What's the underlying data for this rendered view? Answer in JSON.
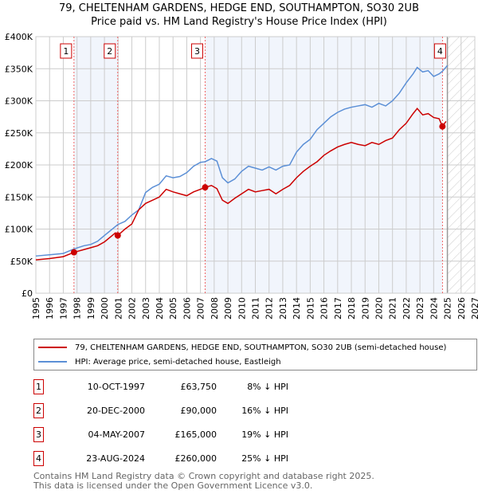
{
  "chart_data": {
    "type": "line",
    "title": "79, CHELTENHAM GARDENS, HEDGE END, SOUTHAMPTON, SO30 2UB",
    "subtitle": "Price paid vs. HM Land Registry's House Price Index (HPI)",
    "xlim": [
      1995,
      2027
    ],
    "ylim": [
      0,
      400000
    ],
    "x_ticks": [
      "1995",
      "1996",
      "1997",
      "1998",
      "1999",
      "2000",
      "2001",
      "2002",
      "2003",
      "2004",
      "2005",
      "2006",
      "2007",
      "2008",
      "2009",
      "2010",
      "2011",
      "2012",
      "2013",
      "2014",
      "2015",
      "2016",
      "2017",
      "2018",
      "2019",
      "2020",
      "2021",
      "2022",
      "2023",
      "2024",
      "2025",
      "2026",
      "2027"
    ],
    "y_ticks": [
      {
        "v": 0,
        "l": "£0"
      },
      {
        "v": 50000,
        "l": "£50K"
      },
      {
        "v": 100000,
        "l": "£100K"
      },
      {
        "v": 150000,
        "l": "£150K"
      },
      {
        "v": 200000,
        "l": "£200K"
      },
      {
        "v": 250000,
        "l": "£250K"
      },
      {
        "v": 300000,
        "l": "£300K"
      },
      {
        "v": 350000,
        "l": "£350K"
      },
      {
        "v": 400000,
        "l": "£400K"
      }
    ],
    "grid": true,
    "series": [
      {
        "name": "79, CHELTENHAM GARDENS, HEDGE END, SOUTHAMPTON, SO30 2UB (semi-detached house)",
        "color": "#cc0000",
        "x": [
          1995,
          1996,
          1997,
          1997.78,
          1998.5,
          1999,
          1999.5,
          2000,
          2000.8,
          2000.97,
          2001.5,
          2002,
          2002.5,
          2003,
          2003.5,
          2004,
          2004.5,
          2005,
          2005.5,
          2006,
          2006.5,
          2007,
          2007.34,
          2007.8,
          2008.2,
          2008.6,
          2009,
          2009.5,
          2010,
          2010.5,
          2011,
          2011.5,
          2012,
          2012.5,
          2013,
          2013.5,
          2014,
          2014.5,
          2015,
          2015.5,
          2016,
          2016.5,
          2017,
          2017.5,
          2018,
          2018.5,
          2019,
          2019.5,
          2020,
          2020.5,
          2021,
          2021.5,
          2022,
          2022.5,
          2022.8,
          2023.2,
          2023.6,
          2024,
          2024.4,
          2024.64,
          2024.9
        ],
        "y": [
          52000,
          54000,
          57000,
          63750,
          68000,
          71000,
          74000,
          80000,
          94000,
          90000,
          100000,
          108000,
          130000,
          140000,
          145000,
          150000,
          162000,
          158000,
          155000,
          152000,
          158000,
          162000,
          165000,
          168000,
          163000,
          145000,
          140000,
          148000,
          155000,
          162000,
          158000,
          160000,
          162000,
          155000,
          162000,
          168000,
          180000,
          190000,
          198000,
          205000,
          215000,
          222000,
          228000,
          232000,
          235000,
          232000,
          230000,
          235000,
          232000,
          238000,
          242000,
          255000,
          265000,
          280000,
          288000,
          278000,
          280000,
          274000,
          272000,
          260000,
          268000
        ]
      },
      {
        "name": "HPI: Average price, semi-detached house, Eastleigh",
        "color": "#5b8fd6",
        "x": [
          1995,
          1996,
          1997,
          1997.78,
          1998.5,
          1999,
          1999.5,
          2000,
          2000.97,
          2001.5,
          2002,
          2002.5,
          2003,
          2003.5,
          2004,
          2004.5,
          2005,
          2005.5,
          2006,
          2006.5,
          2007,
          2007.34,
          2007.8,
          2008.2,
          2008.6,
          2009,
          2009.5,
          2010,
          2010.5,
          2011,
          2011.5,
          2012,
          2012.5,
          2013,
          2013.5,
          2014,
          2014.5,
          2015,
          2015.5,
          2016,
          2016.5,
          2017,
          2017.5,
          2018,
          2018.5,
          2019,
          2019.5,
          2020,
          2020.5,
          2021,
          2021.5,
          2022,
          2022.5,
          2022.8,
          2023.2,
          2023.6,
          2024,
          2024.4,
          2024.64,
          2025
        ],
        "y": [
          58000,
          60000,
          62000,
          69000,
          74000,
          76000,
          81000,
          90000,
          107000,
          112000,
          122000,
          130000,
          157000,
          165000,
          170000,
          183000,
          180000,
          182000,
          188000,
          198000,
          204000,
          205000,
          210000,
          206000,
          180000,
          172000,
          178000,
          190000,
          198000,
          195000,
          192000,
          197000,
          192000,
          198000,
          200000,
          220000,
          232000,
          240000,
          255000,
          265000,
          275000,
          282000,
          287000,
          290000,
          292000,
          294000,
          290000,
          296000,
          292000,
          300000,
          312000,
          328000,
          342000,
          352000,
          345000,
          347000,
          338000,
          342000,
          346000,
          355000
        ]
      }
    ],
    "sales": [
      {
        "label": "1",
        "x": 1997.78,
        "y": 63750,
        "date": "10-OCT-1997",
        "price": "£63,750",
        "hpi": "8% ↓ HPI"
      },
      {
        "label": "2",
        "x": 2000.97,
        "y": 90000,
        "date": "20-DEC-2000",
        "price": "£90,000",
        "hpi": "16% ↓ HPI"
      },
      {
        "label": "3",
        "x": 2007.34,
        "y": 165000,
        "date": "04-MAY-2007",
        "price": "£165,000",
        "hpi": "19% ↓ HPI"
      },
      {
        "label": "4",
        "x": 2024.64,
        "y": 260000,
        "date": "23-AUG-2024",
        "price": "£260,000",
        "hpi": "25% ↓ HPI"
      }
    ],
    "forecast_start": 2025,
    "legend_position": "below"
  },
  "footer": {
    "line1": "Contains HM Land Registry data © Crown copyright and database right 2025.",
    "line2": "This data is licensed under the Open Government Licence v3.0."
  }
}
